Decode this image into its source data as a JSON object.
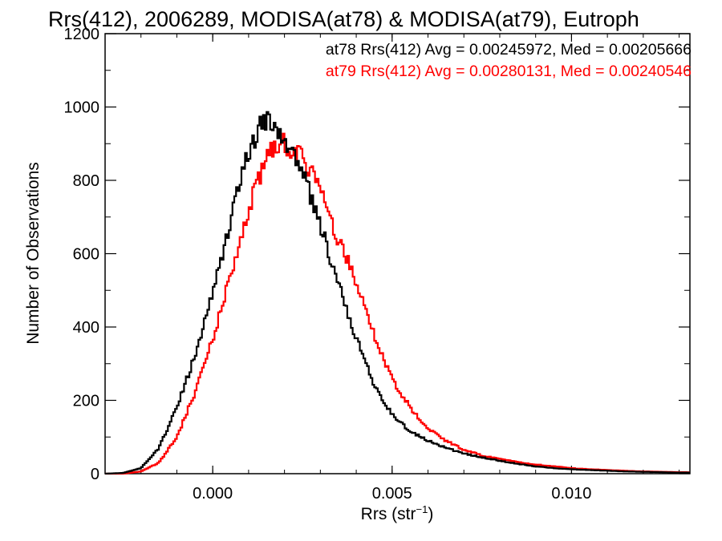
{
  "chart_data": {
    "type": "histogram",
    "title": "Rrs(412), 2006289, MODISA(at78) & MODISA(at79), Eutroph",
    "xlabel_base": "Rrs (str",
    "xlabel_sup": "−1",
    "xlabel_close": ")",
    "ylabel": "Number of Observations",
    "xlim": [
      -0.003,
      0.0133
    ],
    "ylim": [
      0,
      1200
    ],
    "x_ticks": [
      0.0,
      0.005,
      0.01
    ],
    "x_tick_labels": [
      "0.000",
      "0.005",
      "0.010"
    ],
    "y_ticks": [
      0,
      200,
      400,
      600,
      800,
      1000,
      1200
    ],
    "y_tick_labels": [
      "0",
      "200",
      "400",
      "600",
      "800",
      "1000",
      "1200"
    ],
    "legend_position": "top-right",
    "series": [
      {
        "name": "at78",
        "color": "#000000",
        "legend_text": "at78 Rrs(412) Avg = 0.00245972, Med = 0.00205666",
        "x": [
          -0.003,
          -0.0025,
          -0.002,
          -0.0015,
          -0.001,
          -0.0005,
          0.0,
          0.0005,
          0.001,
          0.0015,
          0.002,
          0.0025,
          0.003,
          0.0035,
          0.004,
          0.0045,
          0.005,
          0.0055,
          0.006,
          0.0065,
          0.007,
          0.0075,
          0.008,
          0.0085,
          0.009,
          0.0095,
          0.01,
          0.0105,
          0.011,
          0.0115,
          0.012,
          0.0125,
          0.013
        ],
        "y": [
          0,
          2,
          15,
          70,
          180,
          320,
          500,
          690,
          880,
          975,
          920,
          820,
          680,
          520,
          370,
          240,
          160,
          115,
          90,
          70,
          55,
          45,
          35,
          27,
          20,
          15,
          12,
          10,
          8,
          6,
          5,
          4,
          3
        ]
      },
      {
        "name": "at79",
        "color": "#ff0000",
        "legend_text": "at79 Rrs(412) Avg = 0.00280131, Med = 0.00240546",
        "x": [
          -0.003,
          -0.0025,
          -0.002,
          -0.0015,
          -0.001,
          -0.0005,
          0.0,
          0.0005,
          0.001,
          0.0015,
          0.002,
          0.0025,
          0.003,
          0.0035,
          0.004,
          0.0045,
          0.005,
          0.0055,
          0.006,
          0.0065,
          0.007,
          0.0075,
          0.008,
          0.0085,
          0.009,
          0.0095,
          0.01,
          0.0105,
          0.011,
          0.0115,
          0.012,
          0.0125,
          0.013
        ],
        "y": [
          0,
          0,
          6,
          30,
          100,
          220,
          370,
          540,
          720,
          870,
          900,
          870,
          780,
          640,
          520,
          380,
          260,
          180,
          125,
          90,
          65,
          50,
          40,
          32,
          25,
          20,
          15,
          12,
          10,
          8,
          6,
          5,
          4
        ]
      }
    ]
  }
}
